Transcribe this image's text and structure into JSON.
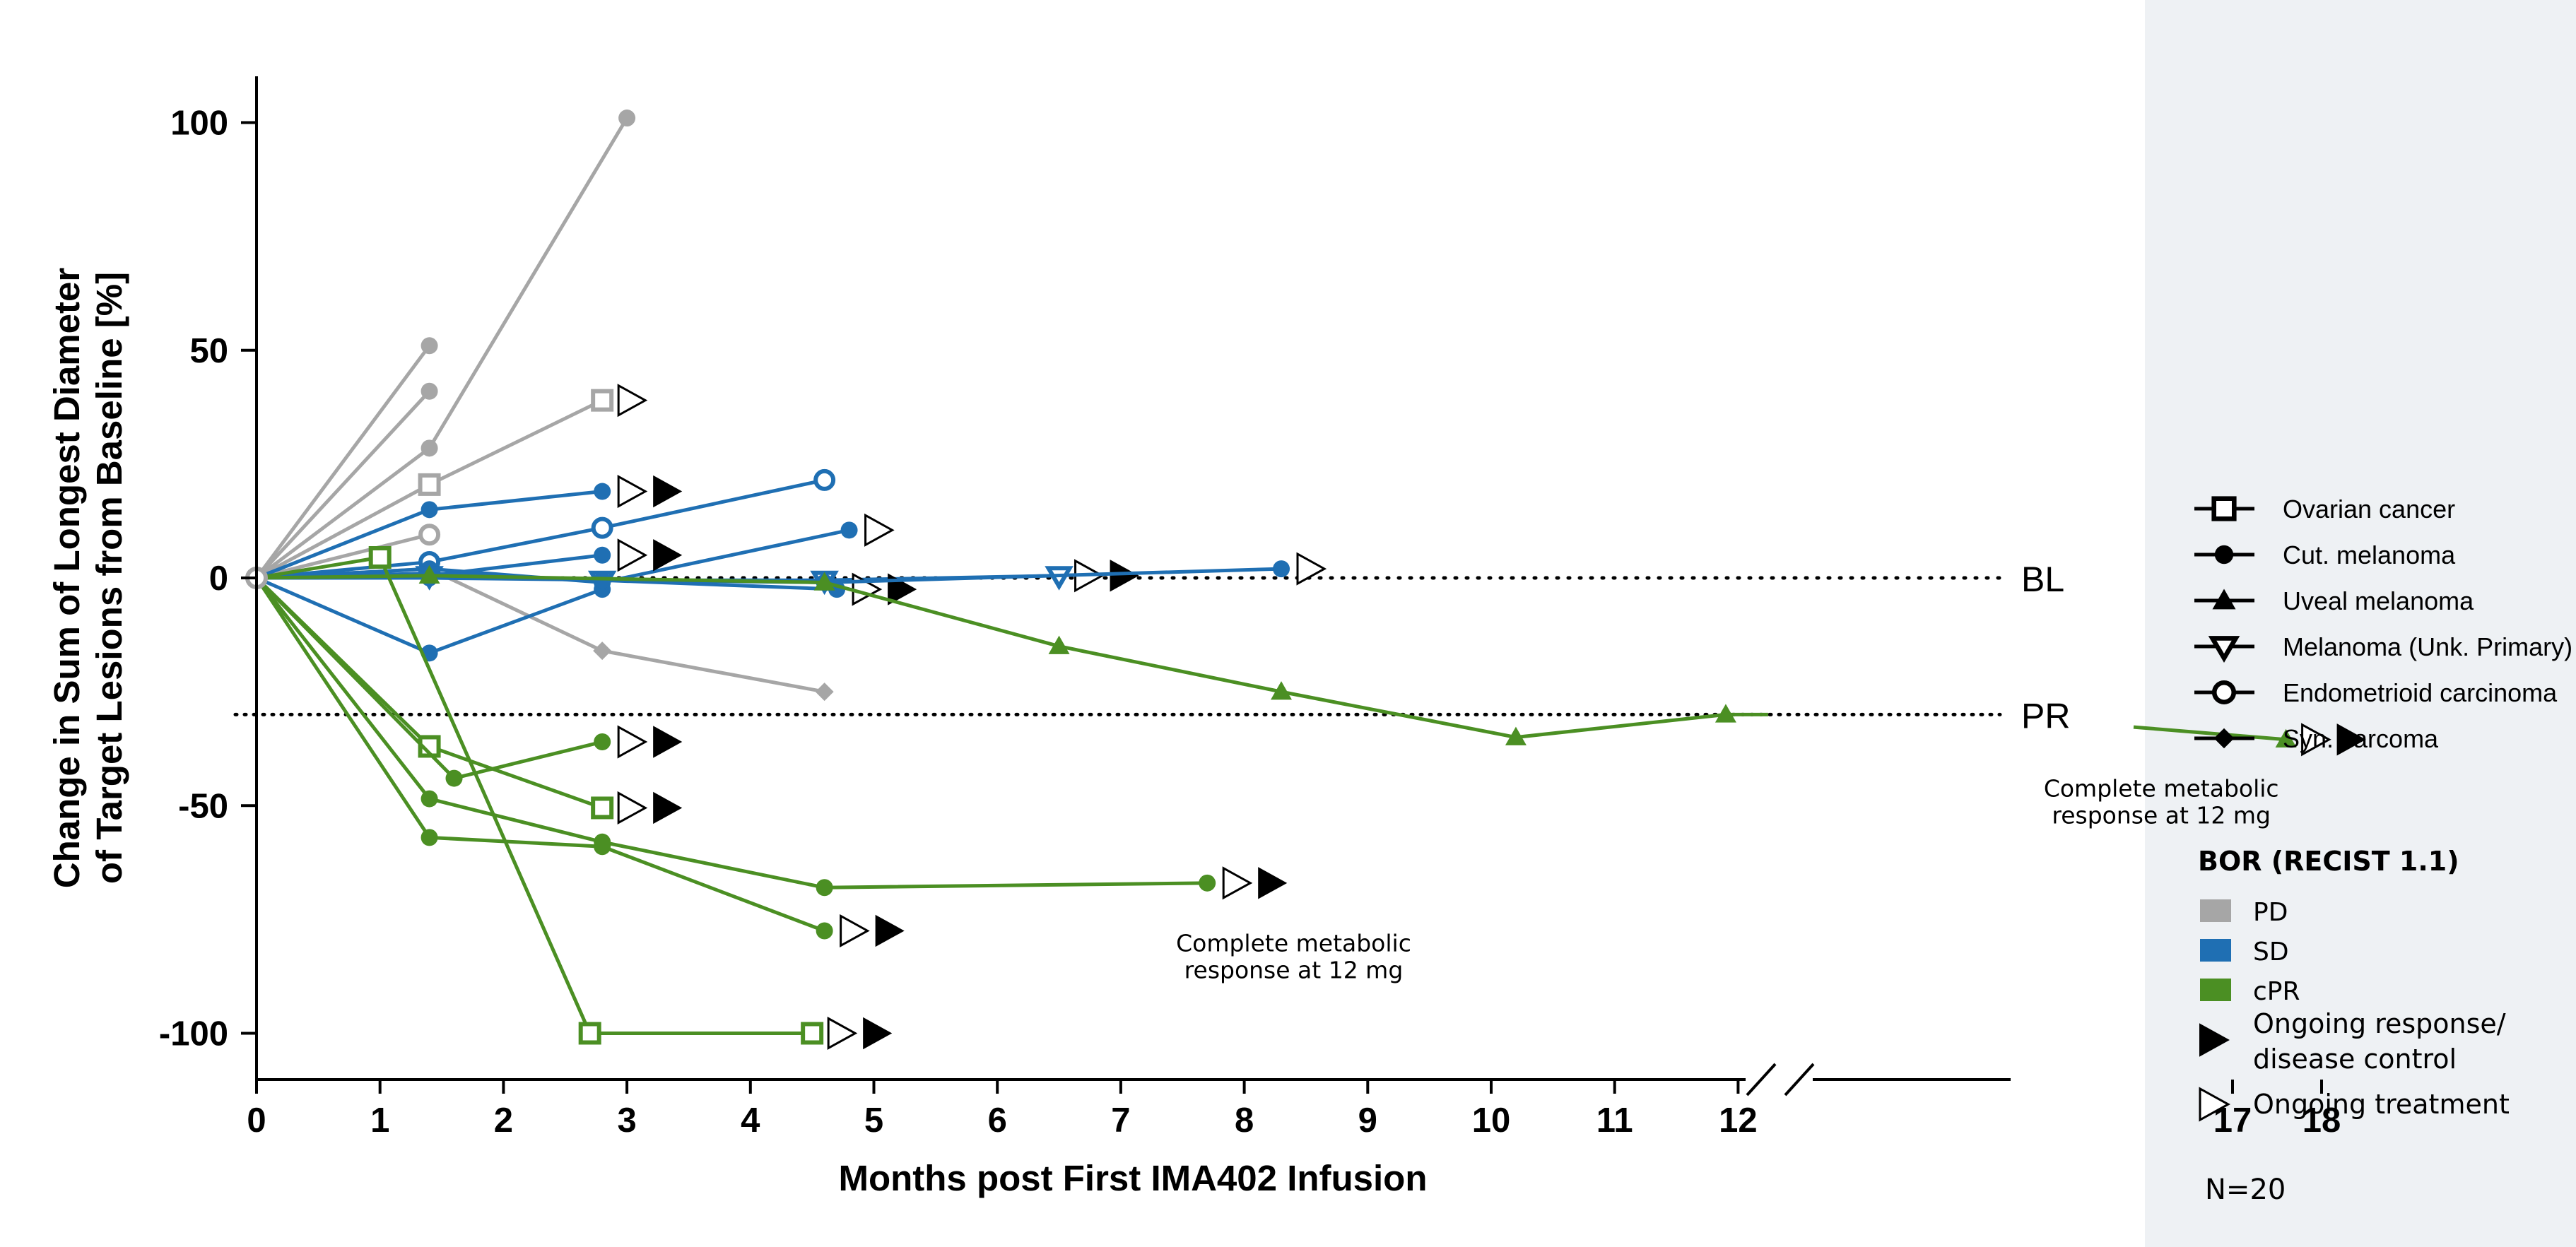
{
  "chart_data": {
    "type": "line",
    "title": "",
    "xlabel": "Months post First IMA402 Infusion",
    "ylabel": "Change in Sum of Longest Diameter of Target Lesions from Baseline [%]",
    "ylabel_lines": [
      "Change in Sum of Longest Diameter",
      "of Target Lesions from Baseline [%]"
    ],
    "ylim": [
      -110,
      110
    ],
    "yticks": [
      100,
      50,
      0,
      -50,
      -100
    ],
    "ytick_labels": [
      "100",
      "50",
      "0",
      "-50",
      "-100"
    ],
    "xticks": [
      0,
      1,
      2,
      3,
      4,
      5,
      6,
      7,
      8,
      9,
      10,
      11,
      12,
      17,
      18
    ],
    "xtick_labels": [
      "0",
      "1",
      "2",
      "3",
      "4",
      "5",
      "6",
      "7",
      "8",
      "9",
      "10",
      "11",
      "12",
      "17",
      "18"
    ],
    "x_axis_break": "between 12 and 17",
    "reference_lines": [
      {
        "label": "BL",
        "y": 0
      },
      {
        "label": "PR",
        "y": -30
      }
    ],
    "colors": {
      "PD": "#a6a6a6",
      "SD": "#1f6fb3",
      "cPR": "#4b8f23",
      "arrow": "#000000"
    },
    "legend_indications": [
      {
        "label": "Ovarian cancer",
        "marker": "square-open"
      },
      {
        "label": "Cut. melanoma",
        "marker": "circle"
      },
      {
        "label": "Uveal melanoma",
        "marker": "triangle-up"
      },
      {
        "label": "Melanoma (Unk. Primary)",
        "marker": "triangle-down-open"
      },
      {
        "label": "Endometrioid carcinoma",
        "marker": "circle-open"
      },
      {
        "label": "Syn. sarcoma",
        "marker": "diamond"
      }
    ],
    "legend_bor_title": "BOR (RECIST 1.1)",
    "legend_bor": [
      {
        "label": "PD",
        "color": "#a6a6a6"
      },
      {
        "label": "SD",
        "color": "#1f6fb3"
      },
      {
        "label": "cPR",
        "color": "#4b8f23"
      }
    ],
    "legend_arrows": [
      {
        "label_lines": [
          "Ongoing response/",
          "disease control"
        ],
        "filled": true
      },
      {
        "label_lines": [
          "Ongoing treatment"
        ],
        "filled": false
      }
    ],
    "n_label": "N=20",
    "annotations": [
      {
        "lines": [
          "Complete metabolic",
          "response at 12 mg"
        ],
        "x": 8.4,
        "y": -82
      },
      {
        "lines": [
          "Complete metabolic",
          "response  at 12 mg"
        ],
        "x": 16.2,
        "y": -48
      }
    ],
    "series": [
      {
        "bor": "PD",
        "marker": "circle",
        "x": [
          0,
          1.4
        ],
        "y": [
          0,
          51
        ],
        "ongoing": []
      },
      {
        "bor": "PD",
        "marker": "circle",
        "x": [
          0,
          1.4
        ],
        "y": [
          0,
          41
        ],
        "ongoing": []
      },
      {
        "bor": "PD",
        "marker": "circle",
        "x": [
          0,
          1.4,
          3.0
        ],
        "y": [
          0,
          28.5,
          101
        ],
        "ongoing": []
      },
      {
        "bor": "PD",
        "marker": "square-open",
        "x": [
          0,
          1.4,
          2.8
        ],
        "y": [
          0,
          20.5,
          39
        ],
        "ongoing": [
          "treatment"
        ]
      },
      {
        "bor": "PD",
        "marker": "circle-open",
        "x": [
          0,
          1.4
        ],
        "y": [
          0,
          9.5
        ],
        "ongoing": []
      },
      {
        "bor": "PD",
        "marker": "diamond",
        "x": [
          0,
          1.4,
          2.8,
          4.6
        ],
        "y": [
          0,
          2,
          -16,
          -25
        ],
        "ongoing": []
      },
      {
        "bor": "SD",
        "marker": "circle",
        "x": [
          0,
          1.4,
          2.8
        ],
        "y": [
          0,
          15,
          19
        ],
        "ongoing": [
          "treatment",
          "response"
        ]
      },
      {
        "bor": "SD",
        "marker": "circle-open",
        "x": [
          0,
          1.4,
          2.8,
          4.6
        ],
        "y": [
          0,
          3.5,
          11,
          21.5
        ],
        "ongoing": []
      },
      {
        "bor": "SD",
        "marker": "circle",
        "x": [
          0,
          1.4,
          2.8,
          4.8
        ],
        "y": [
          0,
          2,
          -1,
          10.5
        ],
        "ongoing": [
          "treatment"
        ]
      },
      {
        "bor": "SD",
        "marker": "circle",
        "x": [
          0,
          1.4,
          2.8
        ],
        "y": [
          0,
          0.5,
          5
        ],
        "ongoing": [
          "treatment",
          "response"
        ]
      },
      {
        "bor": "SD",
        "marker": "circle",
        "x": [
          0,
          1.4,
          2.8
        ],
        "y": [
          0,
          -16.5,
          -2.5
        ],
        "ongoing": []
      },
      {
        "bor": "SD",
        "marker": "triangle-down-open",
        "x": [
          0,
          1.4,
          2.8,
          4.6,
          6.5
        ],
        "y": [
          0,
          0.5,
          -0.5,
          -0.5,
          0.5
        ],
        "ongoing": [
          "treatment",
          "response"
        ]
      },
      {
        "bor": "SD",
        "marker": "circle",
        "x": [
          0,
          1.4,
          2.8,
          4.7
        ],
        "y": [
          0,
          1,
          -0.5,
          -2.5
        ],
        "ongoing": [
          "treatment",
          "response"
        ]
      },
      {
        "bor": "SD",
        "marker": "circle",
        "x": [
          0,
          1.4,
          4.6,
          8.3
        ],
        "y": [
          0,
          0,
          -1,
          2
        ],
        "ongoing": [
          "treatment"
        ]
      },
      {
        "bor": "cPR",
        "marker": "triangle-up",
        "x": [
          0,
          1.4,
          4.6,
          6.5,
          8.3,
          10.2,
          11.9,
          17.6
        ],
        "y": [
          0,
          0.5,
          -1,
          -15,
          -25,
          -35,
          -30,
          -35.5
        ],
        "ongoing": [
          "treatment",
          "response"
        ]
      },
      {
        "bor": "cPR",
        "marker": "square-open",
        "x": [
          0,
          1.0,
          2.7,
          4.5
        ],
        "y": [
          0,
          4.5,
          -100,
          -100
        ],
        "ongoing": [
          "treatment",
          "response"
        ]
      },
      {
        "bor": "cPR",
        "marker": "square-open",
        "x": [
          0,
          1.4,
          2.8
        ],
        "y": [
          0,
          -37,
          -50.5
        ],
        "ongoing": [
          "treatment",
          "response"
        ]
      },
      {
        "bor": "cPR",
        "marker": "circle",
        "x": [
          0,
          1.6,
          2.8
        ],
        "y": [
          0,
          -44,
          -36
        ],
        "ongoing": [
          "treatment",
          "response"
        ]
      },
      {
        "bor": "cPR",
        "marker": "circle",
        "x": [
          0,
          1.4,
          2.8,
          4.6,
          7.7
        ],
        "y": [
          0,
          -48.5,
          -58,
          -68,
          -67
        ],
        "ongoing": [
          "treatment",
          "response"
        ]
      },
      {
        "bor": "cPR",
        "marker": "circle",
        "x": [
          0,
          1.4,
          2.8,
          4.6
        ],
        "y": [
          0,
          -57,
          -59,
          -77.5
        ],
        "ongoing": [
          "treatment",
          "response"
        ]
      }
    ]
  }
}
